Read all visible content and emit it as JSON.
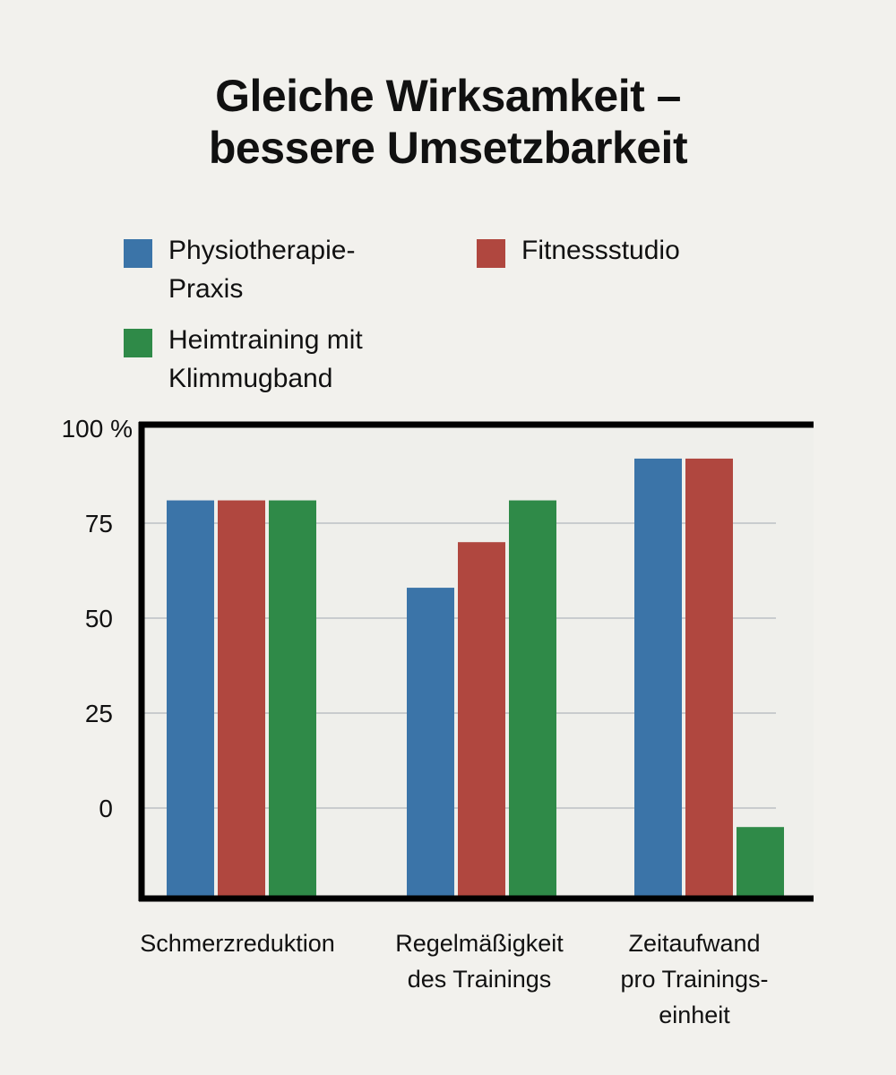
{
  "chart_data": {
    "type": "bar",
    "title": [
      "Gleiche Wirksamkeit –",
      "bessere Umsetzbarkeit"
    ],
    "categories": [
      [
        "Schmerzreduktion"
      ],
      [
        "Regelmäßigkeit",
        "des Trainings"
      ],
      [
        "Zeitaufwand",
        "pro Trainings-",
        "einheit"
      ]
    ],
    "series": [
      {
        "name": "Physiotherapie-\nPraxis",
        "color": "#3b74a8",
        "values": [
          81,
          58,
          92
        ]
      },
      {
        "name": "Fitnessstudio",
        "color": "#b0473f",
        "values": [
          81,
          70,
          92
        ]
      },
      {
        "name": "Heimtraining mit\nKlimmugband",
        "color": "#2f8a48",
        "values": [
          81,
          81,
          -5
        ]
      }
    ],
    "yticks": [
      "100 %",
      "75",
      "50",
      "25",
      "0"
    ],
    "ylim": [
      -23,
      100
    ],
    "grid": true,
    "legend_position": "top"
  }
}
